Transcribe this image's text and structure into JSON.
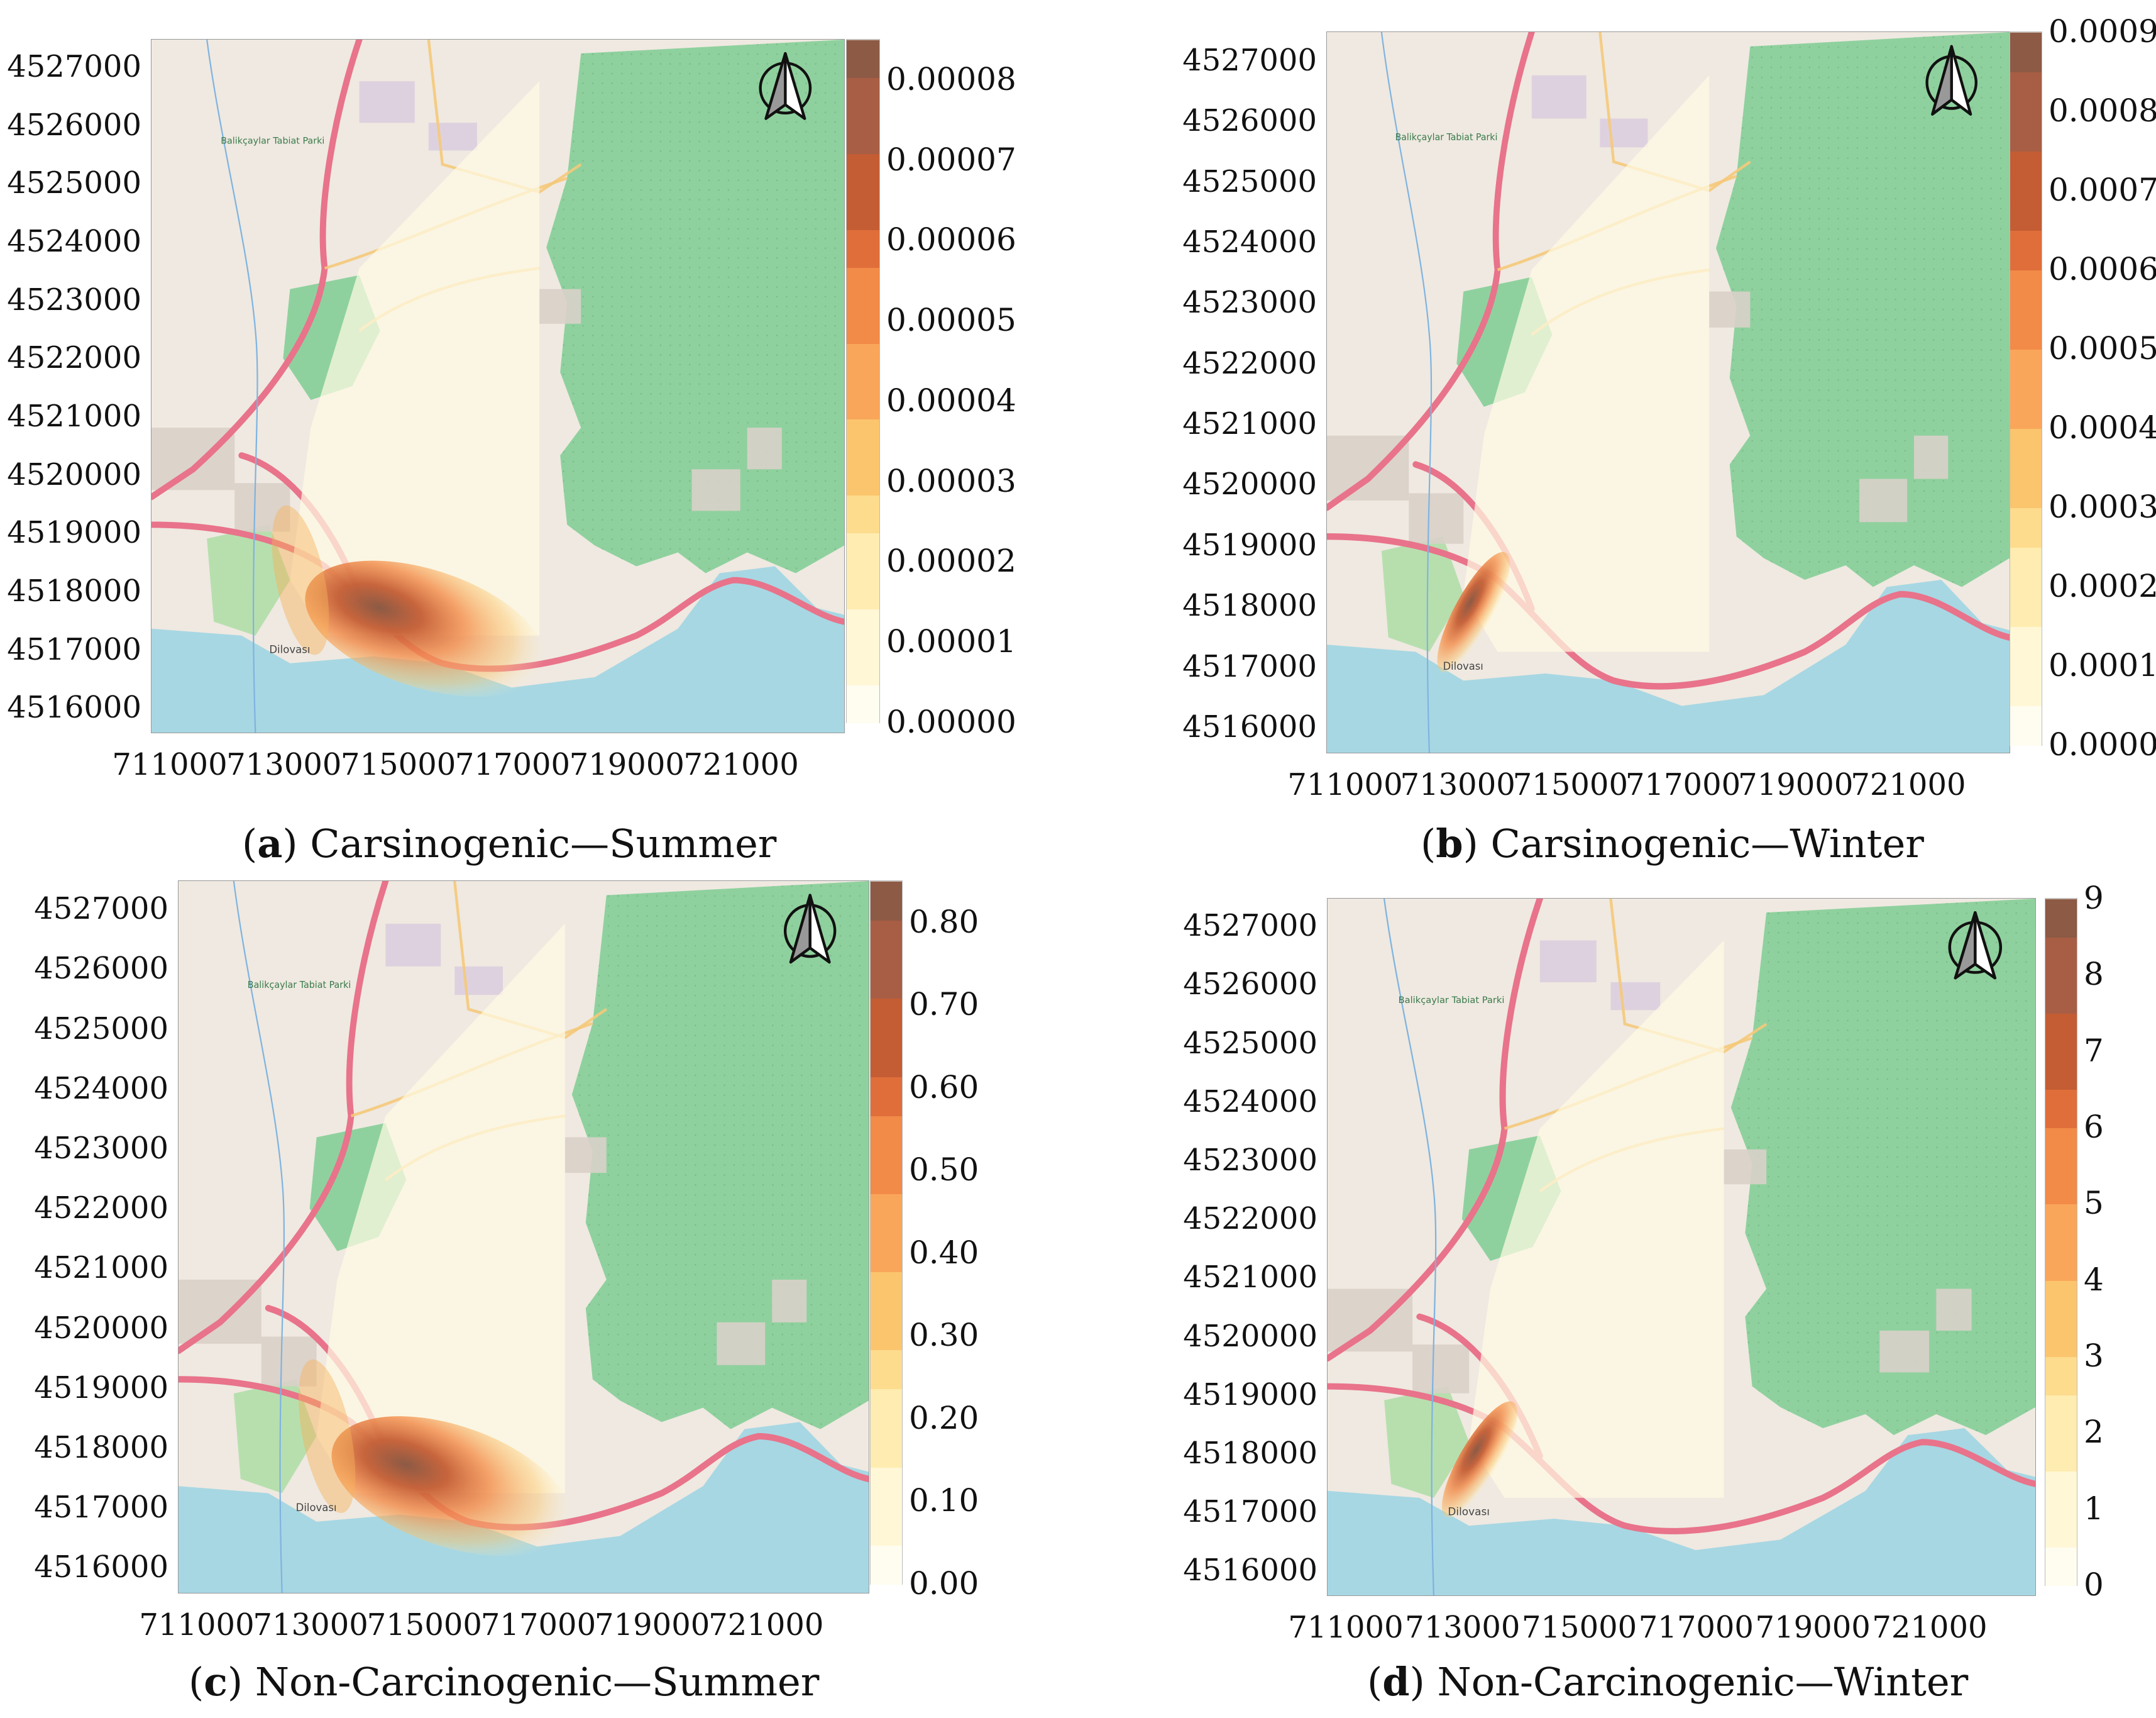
{
  "x_ticks": [
    "711000",
    "713000",
    "715000",
    "717000",
    "719000",
    "721000"
  ],
  "y_ticks": [
    "4527000",
    "4526000",
    "4525000",
    "4524000",
    "4523000",
    "4522000",
    "4521000",
    "4520000",
    "4519000",
    "4518000",
    "4517000",
    "4516000"
  ],
  "map_labels": {
    "park": "Balikçaylar Tabiat Parki",
    "town": "Dilovası"
  },
  "map_colors": {
    "land": "#efe9e1",
    "forest": "#8fd19e",
    "sea": "#a7d7e3",
    "road_major": "#e8738a",
    "road_minor": "#f5c97a",
    "industrial": "#dccedf",
    "urban": "#d9d0c9"
  },
  "panels": [
    {
      "id": "a",
      "caption_letter": "a",
      "caption_text": "Carsinogenic—Summer",
      "colorbar_ticks": [
        "0.00008",
        "0.00007",
        "0.00006",
        "0.00005",
        "0.00004",
        "0.00003",
        "0.00002",
        "0.00001",
        "0.00000"
      ],
      "colorbar_max": 8.5e-05,
      "hotspot": "summer"
    },
    {
      "id": "b",
      "caption_letter": "b",
      "caption_text": "Carsinogenic—Winter",
      "colorbar_ticks": [
        "0.0009",
        "0.0008",
        "0.0007",
        "0.0006",
        "0.0005",
        "0.0004",
        "0.0003",
        "0.0002",
        "0.0001",
        "0.0000"
      ],
      "colorbar_max": 0.0009,
      "hotspot": "winter"
    },
    {
      "id": "c",
      "caption_letter": "c",
      "caption_text": "Non-Carcinogenic—Summer",
      "colorbar_ticks": [
        "0.80",
        "0.70",
        "0.60",
        "0.50",
        "0.40",
        "0.30",
        "0.20",
        "0.10",
        "0.00"
      ],
      "colorbar_max": 0.85,
      "hotspot": "summer"
    },
    {
      "id": "d",
      "caption_letter": "d",
      "caption_text": "Non-Carcinogenic—Winter",
      "colorbar_ticks": [
        "9",
        "8",
        "7",
        "6",
        "5",
        "4",
        "3",
        "2",
        "1",
        "0"
      ],
      "colorbar_max": 9,
      "hotspot": "winter"
    }
  ]
}
